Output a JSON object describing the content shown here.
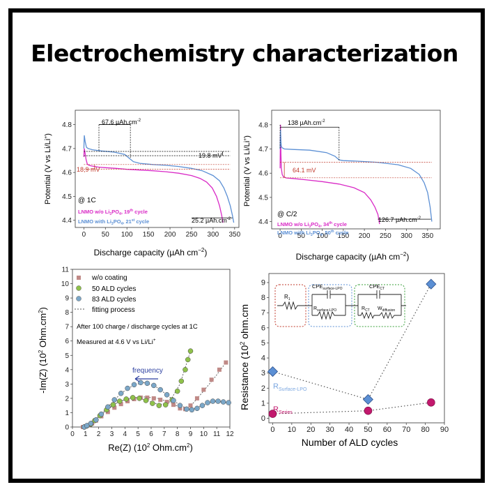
{
  "slide": {
    "title": "Electrochemistry characterization"
  },
  "chart_data": [
    {
      "type": "line",
      "condition": "@ 1C",
      "xlabel_parts": [
        "Discharge capacity (µAh cm",
        "−2",
        ")"
      ],
      "ylabel_parts": [
        "Potential (V vs Li/Li",
        "+",
        ")"
      ],
      "xlim": [
        -20,
        360
      ],
      "ylim": [
        4.37,
        4.86
      ],
      "xticks": [
        0,
        50,
        100,
        150,
        200,
        250,
        300,
        350
      ],
      "yticks": [
        4.4,
        4.5,
        4.6,
        4.7,
        4.8
      ],
      "legend": [
        {
          "text": "LNMO w/o Li",
          "sub": "3",
          "text2": "PO",
          "sub2": "4",
          "text3": ", 19",
          "sup": "th",
          "text4": " cycle",
          "color": "#d92ac6"
        },
        {
          "text": "LNMO with Li",
          "sub": "3",
          "text2": "PO",
          "sub2": "4",
          "text3": ", 21",
          "sup": "st",
          "text4": " cycle",
          "color": "#5b8fd4"
        }
      ],
      "annotations": {
        "capacity_gap": [
          "67.6 µAh.cm",
          "-2"
        ],
        "voltage_gap_right": "19.8 mV",
        "voltage_gap_left": "18,9 mV",
        "end_capacity": [
          "25.2 µAh.cm",
          "-2"
        ]
      },
      "series": [
        {
          "name": "LNMO w/o Li3PO4, 19th cycle",
          "color": "#d92ac6",
          "x": [
            0,
            1,
            3,
            5,
            8,
            12,
            18,
            25,
            35,
            50,
            75,
            100,
            130,
            160,
            190,
            220,
            250,
            270,
            285,
            298,
            308,
            315,
            320,
            323
          ],
          "y": [
            4.665,
            4.7,
            4.68,
            4.655,
            4.635,
            4.63,
            4.627,
            4.625,
            4.622,
            4.62,
            4.617,
            4.613,
            4.61,
            4.607,
            4.603,
            4.597,
            4.587,
            4.575,
            4.56,
            4.535,
            4.5,
            4.46,
            4.42,
            4.39
          ]
        },
        {
          "name": "LNMO with Li3PO4, 21st cycle",
          "color": "#5b8fd4",
          "x": [
            0,
            1,
            3,
            6,
            10,
            20,
            40,
            70,
            95,
            105,
            115,
            130,
            160,
            190,
            220,
            250,
            275,
            300,
            315,
            325,
            333,
            340,
            345,
            348
          ],
          "y": [
            4.7,
            4.755,
            4.73,
            4.705,
            4.7,
            4.695,
            4.69,
            4.685,
            4.675,
            4.66,
            4.645,
            4.638,
            4.633,
            4.63,
            4.625,
            4.617,
            4.607,
            4.587,
            4.565,
            4.535,
            4.5,
            4.46,
            4.42,
            4.39
          ]
        }
      ]
    },
    {
      "type": "line",
      "condition": "@ C/2",
      "xlabel_parts": [
        "Discharge capacity (µAh cm",
        "−2",
        ")"
      ],
      "ylabel_parts": [
        "Potential (V vs Li/Li",
        "+",
        ")"
      ],
      "xlim": [
        -20,
        380
      ],
      "ylim": [
        4.37,
        4.86
      ],
      "xticks": [
        0,
        50,
        100,
        150,
        200,
        250,
        300,
        350
      ],
      "yticks": [
        4.4,
        4.5,
        4.6,
        4.7,
        4.8
      ],
      "legend": [
        {
          "text": "LNMO w/o Li",
          "sub": "3",
          "text2": "PO",
          "sub2": "4",
          "text3": ", 34",
          "sup": "th",
          "text4": " cycle",
          "color": "#d92ac6"
        },
        {
          "text": "LNMO with Li",
          "sub": "3",
          "text2": "PO",
          "sub2": "4",
          "text3": ", 50",
          "sup": "th",
          "text4": " cycle",
          "color": "#5b8fd4"
        }
      ],
      "annotations": {
        "capacity_gap": [
          "138 µAh.cm",
          "-2"
        ],
        "voltage_gap": "64.1 mV",
        "end_capacity": [
          "126.7 µAh.cm",
          "-2"
        ]
      },
      "series": [
        {
          "name": "LNMO w/o Li3PO4, 34th cycle",
          "color": "#d92ac6",
          "x": [
            0,
            1,
            2,
            3,
            5,
            8,
            15,
            30,
            60,
            100,
            140,
            175,
            200,
            215,
            225,
            232,
            236
          ],
          "y": [
            4.62,
            4.8,
            4.68,
            4.62,
            4.595,
            4.585,
            4.58,
            4.578,
            4.573,
            4.565,
            4.555,
            4.54,
            4.52,
            4.49,
            4.46,
            4.43,
            4.39
          ]
        },
        {
          "name": "LNMO with Li3PO4, 50th cycle",
          "color": "#5b8fd4",
          "x": [
            0,
            1,
            2,
            3,
            5,
            10,
            30,
            70,
            110,
            130,
            140,
            150,
            180,
            230,
            280,
            310,
            330,
            342,
            350,
            356,
            360
          ],
          "y": [
            4.7,
            4.78,
            4.73,
            4.71,
            4.705,
            4.7,
            4.698,
            4.695,
            4.685,
            4.67,
            4.655,
            4.652,
            4.65,
            4.645,
            4.635,
            4.62,
            4.595,
            4.56,
            4.52,
            4.46,
            4.4
          ]
        }
      ]
    },
    {
      "type": "scatter",
      "xlabel_parts": [
        "Re(Z) (10",
        "2",
        " Ohm.cm",
        "2",
        ")"
      ],
      "ylabel_parts": [
        "-Im(Z) (10",
        "2",
        " Ohm.cm",
        "2",
        ")"
      ],
      "xlim": [
        0,
        12
      ],
      "ylim": [
        0,
        11
      ],
      "xticks": [
        0,
        1,
        2,
        3,
        4,
        5,
        6,
        7,
        8,
        9,
        10,
        11,
        12
      ],
      "yticks": [
        0,
        1,
        2,
        3,
        4,
        5,
        6,
        7,
        8,
        9,
        10,
        11
      ],
      "legend": [
        "w/o coating",
        "50 ALD cycles",
        "83 ALD cycles",
        "fitting process"
      ],
      "notes": [
        "After 100 charge / discharge cycles at 1C",
        [
          "Measured at 4.6 V vs Li/Li",
          "+"
        ]
      ],
      "arrow_label": "frequency",
      "series": [
        {
          "name": "w/o coating",
          "color": "#c08a87",
          "marker": "square",
          "x": [
            0.8,
            1.0,
            1.2,
            1.5,
            1.8,
            2.2,
            2.7,
            3.2,
            3.7,
            4.2,
            4.7,
            5.2,
            5.7,
            6.2,
            6.7,
            7.2,
            7.7,
            8.2,
            8.6,
            9.0,
            9.5,
            10.0,
            10.6,
            11.2,
            11.7
          ],
          "y": [
            0.0,
            0.05,
            0.12,
            0.25,
            0.45,
            0.75,
            1.05,
            1.35,
            1.6,
            1.8,
            1.95,
            2.05,
            2.05,
            2.0,
            1.9,
            1.75,
            1.55,
            1.3,
            1.25,
            1.5,
            2.0,
            2.6,
            3.3,
            4.0,
            4.5
          ]
        },
        {
          "name": "50 ALD cycles",
          "color": "#8fc14a",
          "marker": "circle",
          "x": [
            0.9,
            1.1,
            1.4,
            1.7,
            2.1,
            2.6,
            3.1,
            3.6,
            4.1,
            4.6,
            5.1,
            5.6,
            6.1,
            6.6,
            7.1,
            7.6,
            8.0,
            8.3,
            8.6,
            8.8,
            9.0
          ],
          "y": [
            0.0,
            0.08,
            0.2,
            0.45,
            0.8,
            1.2,
            1.55,
            1.8,
            1.95,
            2.05,
            2.0,
            1.85,
            1.65,
            1.5,
            1.55,
            1.9,
            2.5,
            3.2,
            4.0,
            4.7,
            5.3
          ]
        },
        {
          "name": "83 ALD cycles",
          "color": "#7ba7c8",
          "marker": "circle",
          "x": [
            0.9,
            1.1,
            1.4,
            1.8,
            2.2,
            2.7,
            3.2,
            3.7,
            4.2,
            4.7,
            5.2,
            5.7,
            6.2,
            6.7,
            7.2,
            7.7,
            8.2,
            8.7,
            9.1,
            9.5,
            9.9,
            10.3,
            10.7,
            11.1,
            11.5,
            11.9
          ],
          "y": [
            0.0,
            0.1,
            0.25,
            0.5,
            0.9,
            1.4,
            1.9,
            2.35,
            2.7,
            2.95,
            3.1,
            3.05,
            2.9,
            2.6,
            2.25,
            1.85,
            1.5,
            1.25,
            1.2,
            1.3,
            1.5,
            1.7,
            1.8,
            1.8,
            1.75,
            1.7
          ]
        }
      ],
      "fits": [
        {
          "x": [
            0.8,
            1.5,
            2.5,
            3.5,
            4.5,
            5.5,
            6.5,
            7.5,
            8.3,
            9.0,
            9.8,
            10.8,
            11.7
          ],
          "y": [
            0.0,
            0.3,
            1.1,
            1.75,
            2.05,
            2.1,
            2.0,
            1.7,
            1.3,
            1.45,
            2.3,
            3.4,
            4.5
          ]
        },
        {
          "x": [
            0.9,
            1.6,
            2.6,
            3.6,
            4.6,
            5.6,
            6.6,
            7.4,
            8.2,
            9.0
          ],
          "y": [
            0.0,
            0.5,
            1.25,
            1.8,
            2.05,
            1.9,
            1.55,
            1.75,
            3.0,
            5.3
          ]
        },
        {
          "x": [
            0.9,
            1.8,
            2.7,
            3.7,
            4.7,
            5.5,
            6.3,
            7.2,
            8.2,
            9.1,
            9.9,
            10.8,
            11.9
          ],
          "y": [
            0.0,
            0.5,
            1.4,
            2.35,
            2.95,
            3.1,
            2.85,
            2.25,
            1.5,
            1.2,
            1.5,
            1.8,
            1.7
          ]
        }
      ]
    },
    {
      "type": "scatter",
      "xlabel": "Number of ALD cycles",
      "ylabel_parts": [
        "Resistance (10",
        "2",
        " ohm.cm"
      ],
      "xlim": [
        -2,
        90
      ],
      "ylim": [
        -0.3,
        9.6
      ],
      "xticks": [
        0,
        10,
        20,
        30,
        40,
        50,
        60,
        70,
        80,
        90
      ],
      "yticks": [
        0,
        1,
        2,
        3,
        4,
        5,
        6,
        7,
        8,
        9
      ],
      "series": [
        {
          "name": "R_Surface-LPO",
          "label": "R",
          "label_sub": "Surface-LPO",
          "color": "#5b8fd4",
          "marker": "diamond",
          "x": [
            0,
            50,
            83
          ],
          "y": [
            3.1,
            1.25,
            8.9
          ]
        },
        {
          "name": "R_Series",
          "label": "R",
          "label_sub": "Series",
          "color": "#c2186d",
          "marker": "circle",
          "x": [
            0,
            50,
            83
          ],
          "y": [
            0.3,
            0.5,
            1.05
          ]
        }
      ],
      "circuit": {
        "r1": "R",
        "r1_sub": "1",
        "cpe_surface": "CPE",
        "cpe_surface_sub": "surface-LPO",
        "r_surface": "R",
        "r_surface_sub": "surface-LPO",
        "cpe_ct": "CPE",
        "cpe_ct_sub": "CT",
        "r_ct": "R",
        "r_ct_sub": "CT",
        "w_diff": "W",
        "w_diff_sub": "diffusion",
        "colors": {
          "box1": "#c0392b",
          "box2": "#5b8fd4",
          "box3": "#3aa03a"
        }
      }
    }
  ]
}
